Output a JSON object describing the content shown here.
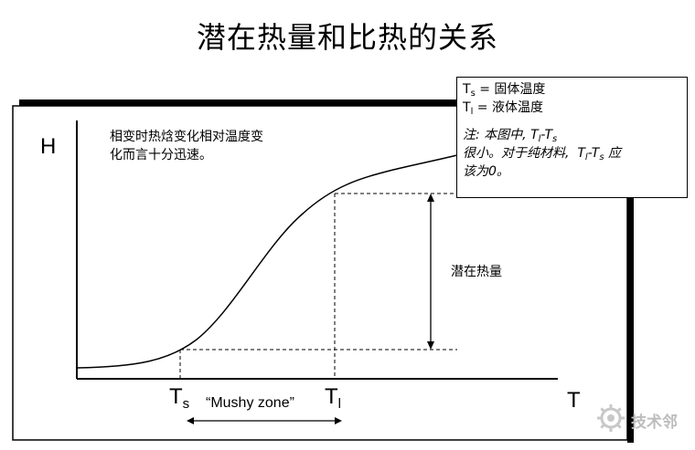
{
  "title": "潜在热量和比热的关系",
  "axes": {
    "y_label": "H",
    "x_label": "T"
  },
  "markers": {
    "ts_main": "T",
    "ts_sub": "s",
    "tl_main": "T",
    "tl_sub": "l"
  },
  "annotations": {
    "note_line1": "相变时热焓变化相对温度变",
    "note_line2": "化而言十分迅速。",
    "latent_heat": "潜在热量",
    "mushy_zone": "“Mushy zone”"
  },
  "legend": {
    "ts_symbol": "T",
    "ts_sub": "s",
    "ts_def": " = 固体温度",
    "tl_symbol": "T",
    "tl_sub": "l",
    "tl_def": " = 液体温度",
    "note_a": "注: 本图中, ",
    "note_b": "很小。对于纯材料, ",
    "note_c": "应",
    "note_d": "该为0。",
    "diff_t1": "T",
    "diff_s1": "l",
    "diff_dash": "-",
    "diff_t2": "T",
    "diff_s2": "s"
  },
  "watermark": {
    "text": "技术邻",
    "icon": "gear-logo-icon"
  },
  "colors": {
    "line": "#000000",
    "watermark": "#bdbdbd"
  }
}
